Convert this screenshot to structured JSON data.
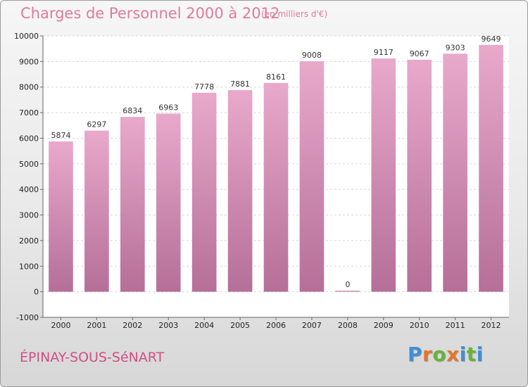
{
  "header": {
    "title": "Charges de Personnel 2000 à 2012",
    "subtitle": "(en milliers d'€)"
  },
  "footer": {
    "city": "ÉPINAY-SOUS-SéNART",
    "logo_text": "Proxiti"
  },
  "colors": {
    "bar_top": "#e8a9cb",
    "bar_bottom": "#b56f98",
    "title": "#e07a9b",
    "city": "#cf4f86",
    "logo": [
      "#3f8fd6",
      "#e3762c",
      "#67b33a",
      "#e3762c",
      "#3f8fd6",
      "#67b33a",
      "#3f8fd6"
    ]
  },
  "chart_data": {
    "type": "bar",
    "categories": [
      "2000",
      "2001",
      "2002",
      "2003",
      "2004",
      "2005",
      "2006",
      "2007",
      "2008",
      "2009",
      "2010",
      "2011",
      "2012"
    ],
    "values": [
      5874,
      6297,
      6834,
      6963,
      7778,
      7881,
      8161,
      9008,
      0,
      9117,
      9067,
      9303,
      9649
    ],
    "title": "Charges de Personnel 2000 à 2012",
    "ylim": [
      -1000,
      10000
    ],
    "yticks": [
      -1000,
      0,
      1000,
      2000,
      3000,
      4000,
      5000,
      6000,
      7000,
      8000,
      9000,
      10000
    ],
    "grid": true
  }
}
